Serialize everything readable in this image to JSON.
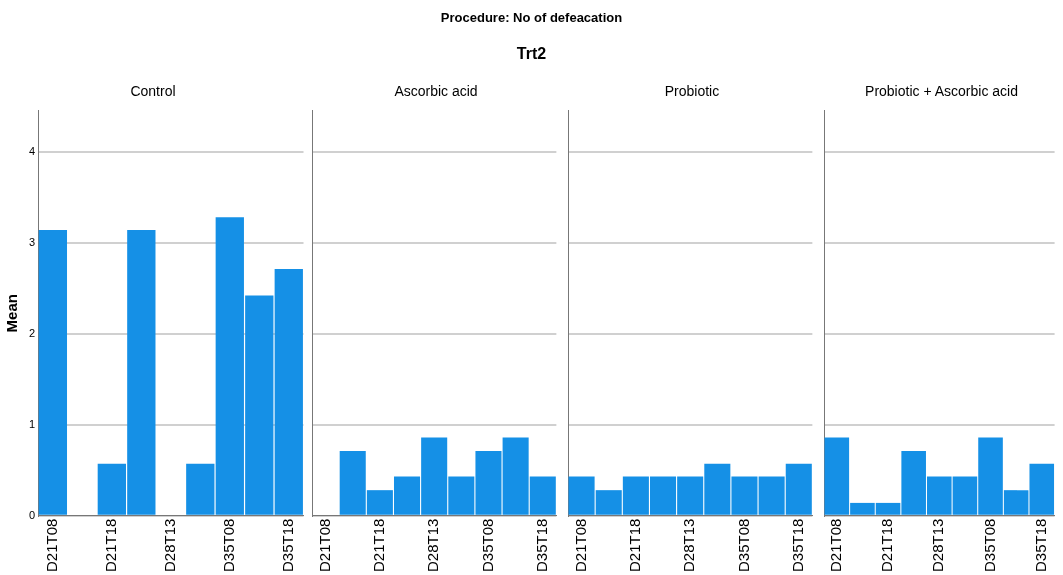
{
  "chart_data": [
    {
      "type": "other",
      "title": "Procedure: No of defeacation",
      "subtitle": "Trt2"
    },
    {
      "type": "bar",
      "title": "Control",
      "ylabel": "Mean",
      "categories": [
        "D21T08",
        null,
        "D21T18",
        null,
        "D28T13",
        null,
        "D35T08",
        null,
        "D35T18"
      ],
      "values": [
        3.14,
        0,
        0.57,
        3.14,
        0,
        0.57,
        3.28,
        2.42,
        2.71
      ],
      "color": "#1590e6",
      "ylim": [
        0,
        4.45
      ],
      "yticks": [
        0,
        1,
        2,
        3,
        4
      ],
      "grid": "y",
      "legend": false
    },
    {
      "type": "bar",
      "title": "Ascorbic acid",
      "categories": [
        "D21T08",
        null,
        "D21T18",
        null,
        "D28T13",
        null,
        "D35T08",
        null,
        "D35T18"
      ],
      "values": [
        0,
        0.71,
        0.28,
        0.43,
        0.86,
        0.43,
        0.71,
        0.86,
        0.43
      ],
      "color": "#1590e6",
      "ylim": [
        0,
        4.45
      ],
      "yticks": [
        0,
        1,
        2,
        3,
        4
      ],
      "grid": "y",
      "legend": false,
      "tick_labels": "x"
    },
    {
      "type": "bar",
      "title": "Probiotic",
      "categories": [
        "D21T08",
        null,
        "D21T18",
        null,
        "D28T13",
        null,
        "D35T08",
        null,
        "D35T18"
      ],
      "values": [
        0.43,
        0.28,
        0.43,
        0.43,
        0.43,
        0.57,
        0.43,
        0.43,
        0.57
      ],
      "color": "#1590e6",
      "ylim": [
        0,
        4.45
      ],
      "yticks": [
        0,
        1,
        2,
        3,
        4
      ],
      "grid": "y",
      "legend": false,
      "tick_labels": "x"
    },
    {
      "type": "bar",
      "title": "Probiotic + Ascorbic acid",
      "categories": [
        "D21T08",
        null,
        "D21T18",
        null,
        "D28T13",
        null,
        "D35T08",
        null,
        "D35T18"
      ],
      "values": [
        0.86,
        0.14,
        0.14,
        0.71,
        0.43,
        0.43,
        0.86,
        0.28,
        0.57
      ],
      "color": "#1590e6",
      "ylim": [
        0,
        4.45
      ],
      "yticks": [
        0,
        1,
        2,
        3,
        4
      ],
      "grid": "y",
      "legend": false,
      "tick_labels": "x"
    }
  ]
}
